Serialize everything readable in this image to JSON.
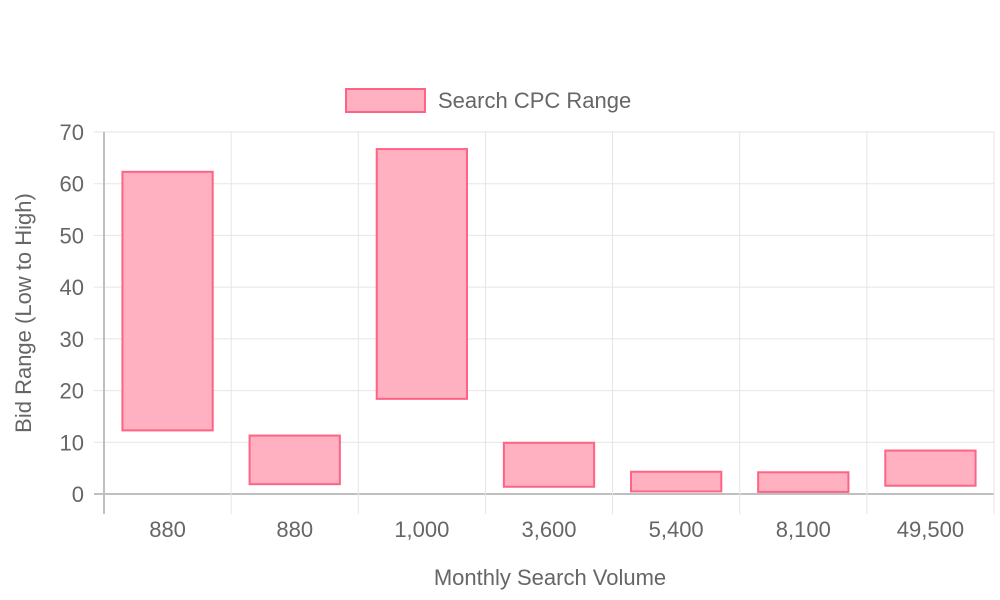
{
  "chart_data": {
    "type": "bar",
    "subtype": "floating-range",
    "title": "",
    "xlabel": "Monthly Search Volume",
    "ylabel": "Bid Range (Low to High)",
    "categories": [
      "880",
      "880",
      "1,000",
      "3,600",
      "5,400",
      "8,100",
      "49,500"
    ],
    "series": [
      {
        "name": "Search CPC Range",
        "ranges": [
          [
            12.3,
            62.3
          ],
          [
            1.9,
            11.3
          ],
          [
            18.4,
            66.7
          ],
          [
            1.4,
            9.9
          ],
          [
            0.5,
            4.3
          ],
          [
            0.4,
            4.2
          ],
          [
            1.6,
            8.4
          ]
        ]
      }
    ],
    "ylim": [
      0,
      70
    ],
    "yticks": [
      "0",
      "10",
      "20",
      "30",
      "40",
      "50",
      "60",
      "70"
    ],
    "grid": true,
    "legend": "top-center",
    "colors": {
      "fill": "#ffb1c1",
      "stroke": "#ff6384",
      "grid": "#e5e5e5",
      "axis": "#bfbfbf",
      "text": "#666666"
    }
  }
}
